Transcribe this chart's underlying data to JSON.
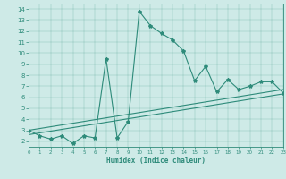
{
  "xlabel": "Humidex (Indice chaleur)",
  "xlim": [
    0,
    23
  ],
  "ylim": [
    1.5,
    14.5
  ],
  "yticks": [
    2,
    3,
    4,
    5,
    6,
    7,
    8,
    9,
    10,
    11,
    12,
    13,
    14
  ],
  "xticks": [
    0,
    1,
    2,
    3,
    4,
    5,
    6,
    7,
    8,
    9,
    10,
    11,
    12,
    13,
    14,
    15,
    16,
    17,
    18,
    19,
    20,
    21,
    22,
    23
  ],
  "line_color": "#2e8b7a",
  "bg_color": "#ceeae7",
  "main_x": [
    0,
    1,
    2,
    3,
    4,
    5,
    6,
    7,
    8,
    9,
    10,
    11,
    12,
    13,
    14,
    15,
    16,
    17,
    18,
    19,
    20,
    21,
    22,
    23
  ],
  "main_y": [
    3.0,
    2.5,
    2.2,
    2.5,
    1.8,
    2.5,
    2.3,
    9.5,
    2.3,
    3.8,
    13.8,
    12.5,
    11.8,
    11.2,
    10.2,
    7.5,
    8.8,
    6.5,
    7.6,
    6.7,
    7.0,
    7.4,
    7.4,
    6.4
  ],
  "line2_x": [
    0,
    23
  ],
  "line2_y": [
    2.6,
    6.3
  ],
  "line3_x": [
    0,
    23
  ],
  "line3_y": [
    3.0,
    6.7
  ],
  "marker": "*",
  "markersize": 3,
  "linewidth": 0.8
}
